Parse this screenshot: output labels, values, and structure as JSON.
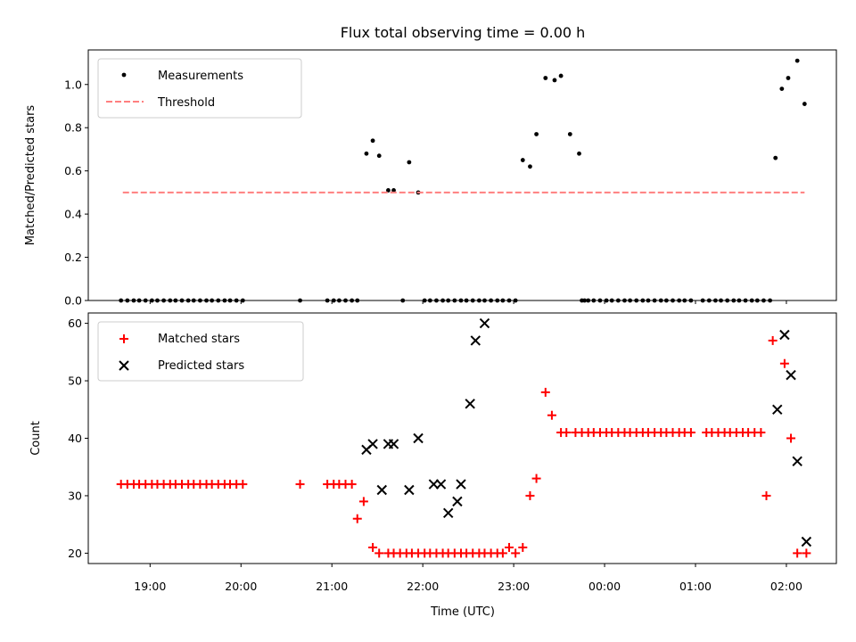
{
  "chart_data": [
    {
      "type": "scatter",
      "title": "Flux total observing time = 0.00 h",
      "xlabel": "",
      "ylabel": "Matched/Predicted stars",
      "ylim": [
        0.0,
        1.16
      ],
      "yticks": [
        "0.0",
        "0.2",
        "0.4",
        "0.6",
        "0.8",
        "1.0"
      ],
      "ytick_values": [
        0.0,
        0.2,
        0.4,
        0.6,
        0.8,
        1.0
      ],
      "xlim": [
        -0.68,
        7.55
      ],
      "xtick_values": [
        0,
        1,
        2,
        3,
        4,
        5,
        6,
        7
      ],
      "show_xtick_labels": false,
      "legend": "top-left",
      "series": [
        {
          "name": "Measurements",
          "kind": "points",
          "color": "#000000",
          "x": [
            -0.32,
            -0.25,
            -0.18,
            -0.12,
            -0.05,
            0.02,
            0.08,
            0.15,
            0.22,
            0.28,
            0.35,
            0.42,
            0.48,
            0.55,
            0.62,
            0.68,
            0.75,
            0.82,
            0.88,
            0.95,
            1.02,
            1.65,
            1.95,
            2.02,
            2.08,
            2.15,
            2.22,
            2.28,
            2.38,
            2.45,
            2.52,
            2.62,
            2.68,
            2.78,
            2.85,
            2.95,
            3.02,
            3.08,
            3.15,
            3.22,
            3.28,
            3.35,
            3.42,
            3.48,
            3.55,
            3.62,
            3.68,
            3.75,
            3.82,
            3.88,
            3.95,
            4.02,
            4.1,
            4.18,
            4.25,
            4.35,
            4.45,
            4.52,
            4.62,
            4.72,
            4.78,
            4.75,
            4.82,
            4.88,
            4.95,
            5.02,
            5.08,
            5.15,
            5.22,
            5.28,
            5.35,
            5.42,
            5.48,
            5.55,
            5.62,
            5.68,
            5.75,
            5.82,
            5.88,
            5.95,
            6.08,
            6.15,
            6.22,
            6.28,
            6.35,
            6.42,
            6.48,
            6.55,
            6.62,
            6.68,
            6.75,
            6.82,
            6.88,
            6.95,
            7.02,
            7.12,
            7.2
          ],
          "y": [
            0,
            0,
            0,
            0,
            0,
            0,
            0,
            0,
            0,
            0,
            0,
            0,
            0,
            0,
            0,
            0,
            0,
            0,
            0,
            0,
            0,
            0,
            0,
            0,
            0,
            0,
            0,
            0,
            0.68,
            0.74,
            0.67,
            0.51,
            0.51,
            0,
            0.64,
            0.5,
            0,
            0,
            0,
            0,
            0,
            0,
            0,
            0,
            0,
            0,
            0,
            0,
            0,
            0,
            0,
            0,
            0.65,
            0.62,
            0.77,
            1.03,
            1.02,
            1.04,
            0.77,
            0.68,
            0,
            0,
            0,
            0,
            0,
            0,
            0,
            0,
            0,
            0,
            0,
            0,
            0,
            0,
            0,
            0,
            0,
            0,
            0,
            0,
            0,
            0,
            0,
            0,
            0,
            0,
            0,
            0,
            0,
            0,
            0,
            0,
            0.66,
            0.98,
            1.03,
            1.11,
            0.91
          ]
        },
        {
          "name": "Threshold",
          "kind": "line",
          "color": "#ff7f7f",
          "x": [
            -0.3,
            7.2
          ],
          "y": [
            0.5,
            0.5
          ]
        }
      ]
    },
    {
      "type": "scatter",
      "title": "",
      "xlabel": "Time (UTC)",
      "ylabel": "Count",
      "ylim": [
        18.2,
        61.8
      ],
      "yticks": [
        "20",
        "30",
        "40",
        "50",
        "60"
      ],
      "ytick_values": [
        20,
        30,
        40,
        50,
        60
      ],
      "xlim": [
        -0.68,
        7.55
      ],
      "xtick_values": [
        0,
        1,
        2,
        3,
        4,
        5,
        6,
        7
      ],
      "xticks": [
        "19:00",
        "20:00",
        "21:00",
        "22:00",
        "23:00",
        "00:00",
        "01:00",
        "02:00"
      ],
      "legend": "top-left",
      "series": [
        {
          "name": "Matched stars",
          "marker": "plus",
          "color": "#ff0000",
          "x": [
            -0.32,
            -0.25,
            -0.18,
            -0.12,
            -0.05,
            0.02,
            0.08,
            0.15,
            0.22,
            0.28,
            0.35,
            0.42,
            0.48,
            0.55,
            0.62,
            0.68,
            0.75,
            0.82,
            0.88,
            0.95,
            1.02,
            1.65,
            1.95,
            2.02,
            2.08,
            2.15,
            2.22,
            2.28,
            2.35,
            2.45,
            2.52,
            2.62,
            2.68,
            2.75,
            2.82,
            2.88,
            2.95,
            3.02,
            3.08,
            3.15,
            3.22,
            3.28,
            3.35,
            3.42,
            3.48,
            3.55,
            3.62,
            3.68,
            3.75,
            3.82,
            3.88,
            3.95,
            4.02,
            4.1,
            4.18,
            4.25,
            4.35,
            4.42,
            4.52,
            4.58,
            4.68,
            4.75,
            4.82,
            4.88,
            4.95,
            5.02,
            5.08,
            5.15,
            5.22,
            5.28,
            5.35,
            5.42,
            5.48,
            5.55,
            5.62,
            5.68,
            5.75,
            5.82,
            5.88,
            5.95,
            6.12,
            6.18,
            6.25,
            6.32,
            6.38,
            6.45,
            6.52,
            6.58,
            6.65,
            6.72,
            6.78,
            6.85,
            6.98,
            7.05,
            7.12,
            7.22
          ],
          "y": [
            32,
            32,
            32,
            32,
            32,
            32,
            32,
            32,
            32,
            32,
            32,
            32,
            32,
            32,
            32,
            32,
            32,
            32,
            32,
            32,
            32,
            32,
            32,
            32,
            32,
            32,
            32,
            26,
            29,
            21,
            20,
            20,
            20,
            20,
            20,
            20,
            20,
            20,
            20,
            20,
            20,
            20,
            20,
            20,
            20,
            20,
            20,
            20,
            20,
            20,
            20,
            21,
            20,
            21,
            30,
            33,
            48,
            44,
            41,
            41,
            41,
            41,
            41,
            41,
            41,
            41,
            41,
            41,
            41,
            41,
            41,
            41,
            41,
            41,
            41,
            41,
            41,
            41,
            41,
            41,
            41,
            41,
            41,
            41,
            41,
            41,
            41,
            41,
            41,
            41,
            30,
            57,
            53,
            40,
            20,
            20
          ]
        },
        {
          "name": "Predicted stars",
          "marker": "x",
          "color": "#000000",
          "x": [
            2.38,
            2.45,
            2.55,
            2.62,
            2.68,
            2.85,
            2.95,
            3.12,
            3.2,
            3.28,
            3.38,
            3.42,
            3.52,
            3.58,
            3.68,
            6.9,
            6.98,
            7.05,
            7.12,
            7.22
          ],
          "y": [
            38,
            39,
            31,
            39,
            39,
            31,
            40,
            32,
            32,
            27,
            29,
            32,
            46,
            57,
            60,
            45,
            58,
            51,
            36,
            22
          ]
        }
      ]
    }
  ]
}
